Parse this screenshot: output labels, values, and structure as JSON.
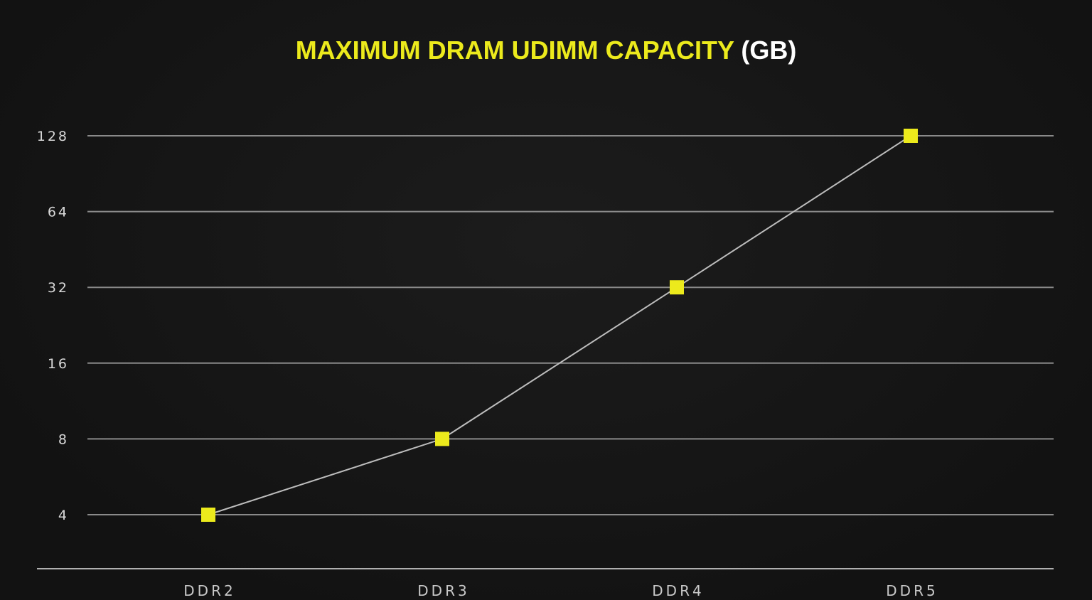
{
  "chart_data": {
    "type": "line",
    "title": "MAXIMUM DRAM UDIMM CAPACITY",
    "title_unit": "(GB)",
    "categories": [
      "DDR2",
      "DDR3",
      "DDR4",
      "DDR5"
    ],
    "values": [
      4,
      8,
      32,
      128
    ],
    "yscale": "log2",
    "ylim": [
      4,
      128
    ],
    "yticks": [
      4,
      8,
      16,
      32,
      64,
      128
    ],
    "ytick_labels": [
      "4",
      "8",
      "16",
      "32",
      "64",
      "128"
    ],
    "grid": true,
    "legend": "none",
    "colors": {
      "title": "#ecea1c",
      "marker": "#ecea1c",
      "line": "#bdbdbd",
      "grid": "#8a8a8a",
      "background": "#151515"
    }
  }
}
